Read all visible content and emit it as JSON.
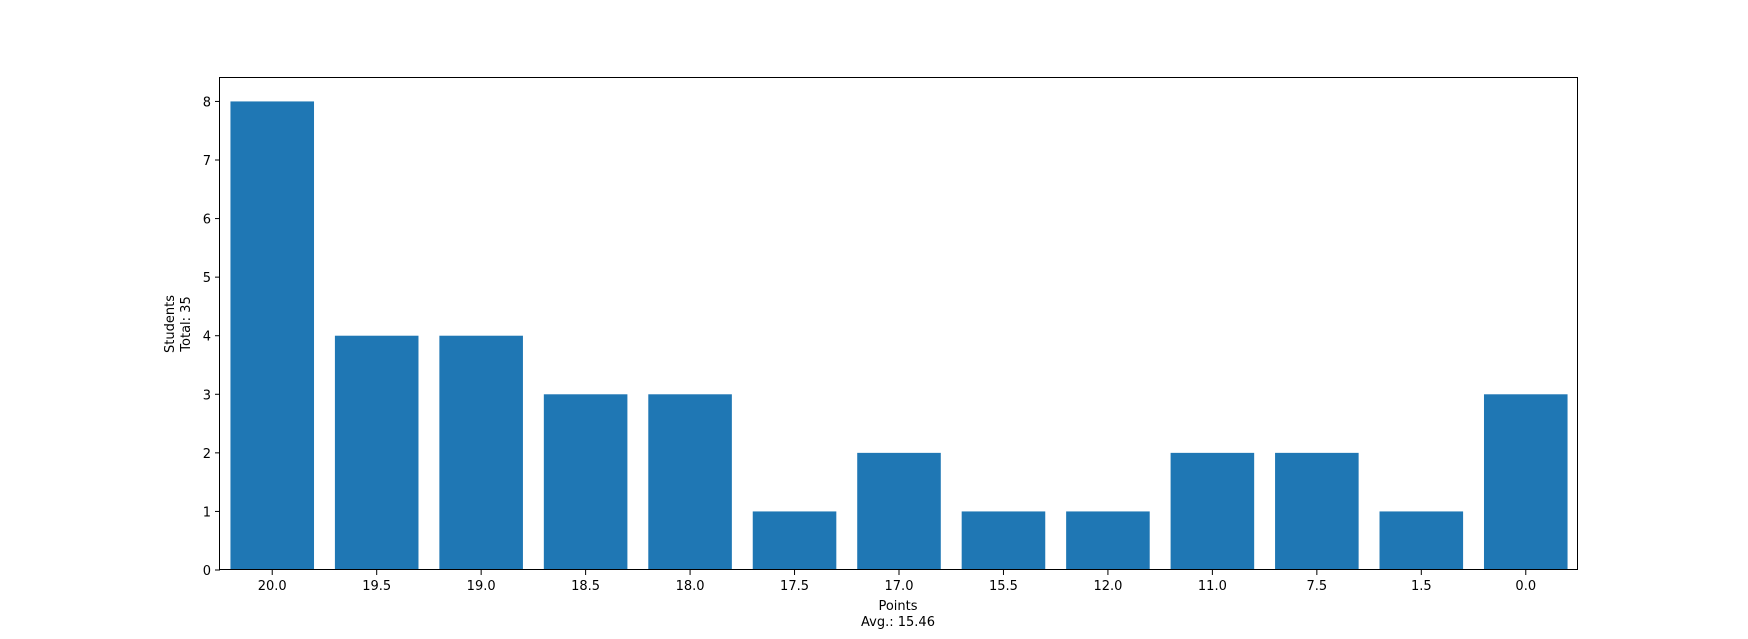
{
  "chart_data": {
    "type": "bar",
    "categories": [
      "20.0",
      "19.5",
      "19.0",
      "18.5",
      "18.0",
      "17.5",
      "17.0",
      "15.5",
      "12.0",
      "11.0",
      "7.5",
      "1.5",
      "0.0"
    ],
    "values": [
      8,
      4,
      4,
      3,
      3,
      1,
      2,
      1,
      1,
      2,
      2,
      1,
      3
    ],
    "xlabel": "Points",
    "xlabel2": "Avg.: 15.46",
    "ylabel": "Students",
    "ylabel2": "Total: 35",
    "ylim": [
      0,
      8.4
    ],
    "yticks": [
      "0",
      "1",
      "2",
      "3",
      "4",
      "5",
      "6",
      "7",
      "8"
    ],
    "bar_color": "#1f77b4",
    "grid": false,
    "legend": "none"
  }
}
